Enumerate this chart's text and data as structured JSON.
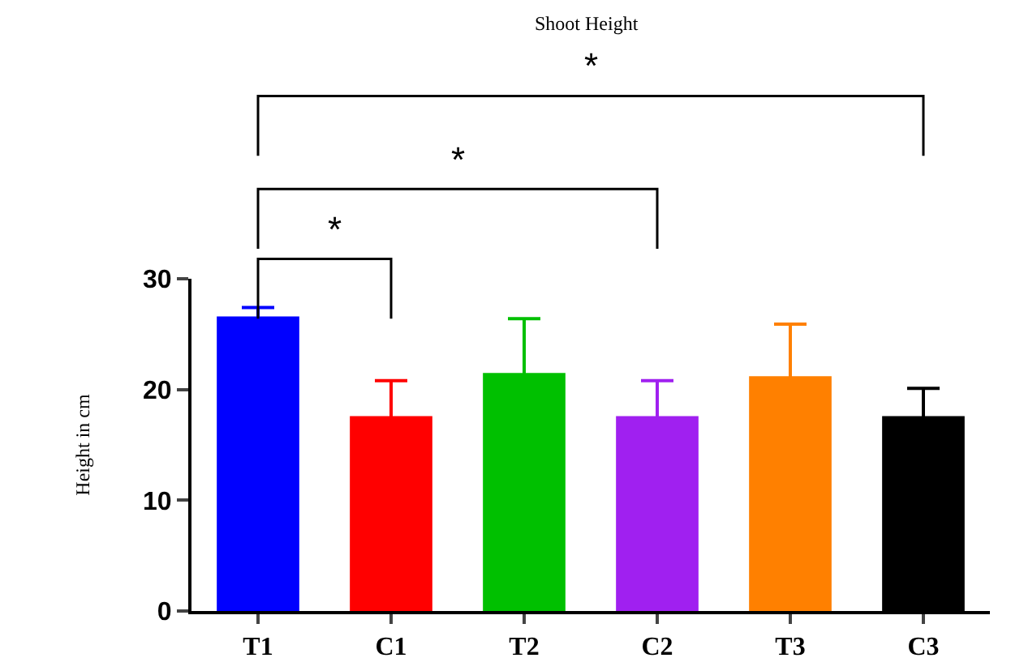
{
  "chart_data": {
    "type": "bar",
    "title": "Shoot Height",
    "ylabel": "Height in cm",
    "categories": [
      "T1",
      "C1",
      "T2",
      "C2",
      "T3",
      "C3"
    ],
    "values": [
      26.6,
      17.6,
      21.5,
      17.6,
      21.2,
      17.6
    ],
    "errors": [
      0.8,
      3.2,
      4.9,
      3.2,
      4.7,
      2.5
    ],
    "colors": [
      "#0000ff",
      "#ff0000",
      "#00c000",
      "#a020f0",
      "#ff8000",
      "#000000"
    ],
    "ylim": [
      0,
      30
    ],
    "yticks": [
      0,
      10,
      20,
      30
    ],
    "annotations": [
      "*",
      "*",
      "*"
    ]
  }
}
